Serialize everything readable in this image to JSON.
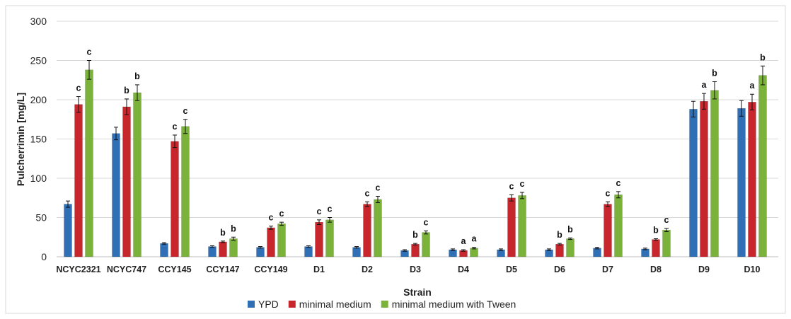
{
  "chart_data": {
    "type": "bar",
    "xlabel": "Strain",
    "ylabel": "Pulcherrimin [mg/L]",
    "ylim": [
      0,
      300
    ],
    "yticks": [
      0,
      50,
      100,
      150,
      200,
      250,
      300
    ],
    "grid": "horizontal",
    "legend_position": "bottom",
    "categories": [
      "NCYC2321",
      "NCYC747",
      "CCY145",
      "CCY147",
      "CCY149",
      "D1",
      "D2",
      "D3",
      "D4",
      "D5",
      "D6",
      "D7",
      "D8",
      "D9",
      "D10"
    ],
    "series": [
      {
        "name": "YPD",
        "color": "#2e6fb5",
        "values": [
          67,
          157,
          17,
          13,
          12,
          13,
          12,
          8,
          9,
          9,
          9,
          11,
          10,
          188,
          189
        ],
        "errors": [
          4,
          8,
          1,
          1,
          1,
          1,
          1,
          1,
          1,
          1,
          1,
          1,
          1,
          10,
          10
        ],
        "labels": [
          "",
          "",
          "",
          "",
          "",
          "",
          "",
          "",
          "",
          "",
          "",
          "",
          "",
          "",
          ""
        ]
      },
      {
        "name": "minimal medium",
        "color": "#c8262d",
        "values": [
          194,
          191,
          147,
          19,
          37,
          44,
          67,
          16,
          8,
          75,
          16,
          67,
          22,
          198,
          197
        ],
        "errors": [
          10,
          10,
          8,
          1,
          2,
          3,
          3,
          1,
          1,
          4,
          1,
          3,
          1,
          10,
          10
        ],
        "labels": [
          "c",
          "b",
          "c",
          "b",
          "c",
          "c",
          "c",
          "b",
          "a",
          "c",
          "b",
          "c",
          "b",
          "a",
          "a"
        ]
      },
      {
        "name": "minimal medium with Tween",
        "color": "#7bb23a",
        "values": [
          238,
          209,
          166,
          23,
          42,
          47,
          73,
          31,
          11,
          78,
          23,
          79,
          34,
          212,
          231
        ],
        "errors": [
          12,
          10,
          9,
          2,
          2,
          3,
          4,
          2,
          1,
          4,
          1,
          4,
          2,
          11,
          12
        ],
        "labels": [
          "c",
          "b",
          "c",
          "b",
          "c",
          "c",
          "c",
          "c",
          "a",
          "c",
          "b",
          "c",
          "c",
          "b",
          "b"
        ]
      }
    ]
  }
}
